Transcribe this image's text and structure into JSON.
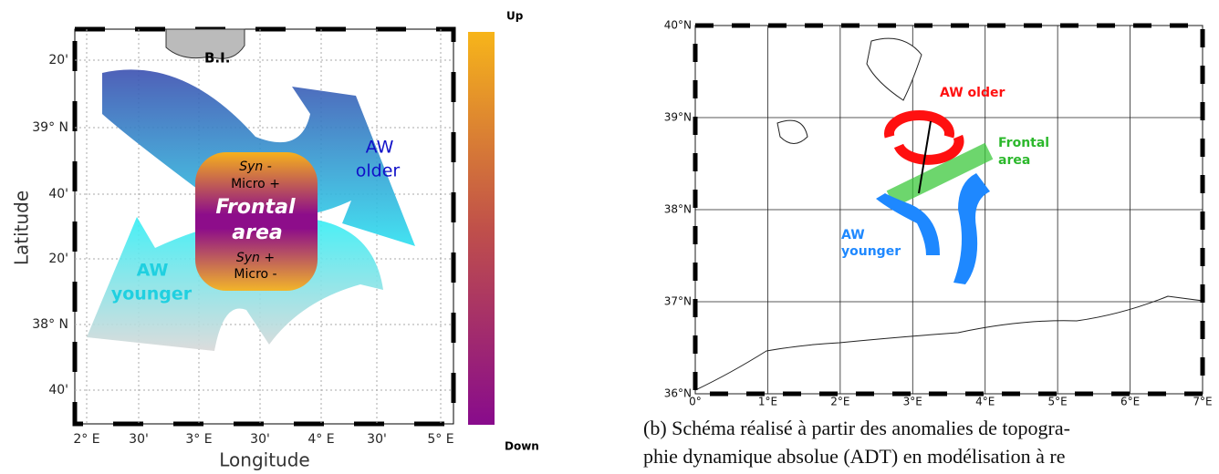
{
  "panel_a": {
    "y_labels": [
      "20'",
      "39° N",
      "40'",
      "20'",
      "38° N",
      "40'"
    ],
    "x_labels": [
      "2° E",
      "30'",
      "3° E",
      "30'",
      "4° E",
      "30'",
      "5° E"
    ],
    "y_title": "Latitude",
    "x_title": "Longitude",
    "colorbar": {
      "top": "Up",
      "bottom": "Down"
    },
    "labels": {
      "island": "B.I.",
      "syn_top": "Syn -",
      "micro_top": "Micro +",
      "frontal": "Frontal",
      "area": "area",
      "syn_bottom": "Syn +",
      "micro_bottom": "Micro -",
      "older_aw": "AW",
      "older": "older",
      "younger_aw": "AW",
      "younger": "younger"
    }
  },
  "panel_b": {
    "y_labels": [
      "40°N",
      "39°N",
      "38°N",
      "37°N",
      "36°N"
    ],
    "x_labels": [
      "0°",
      "1°E",
      "2°E",
      "3°E",
      "4°E",
      "5°E",
      "6°E",
      "7°E"
    ],
    "labels": {
      "aw_older": "AW older",
      "frontal": "Frontal",
      "area": "area",
      "younger_aw": "AW",
      "younger": "younger"
    }
  },
  "caption": [
    "(b) Schéma réalisé à partir des anomalies de topogra-",
    "phie dynamique absolue (ADT) en modélisation à re"
  ]
}
